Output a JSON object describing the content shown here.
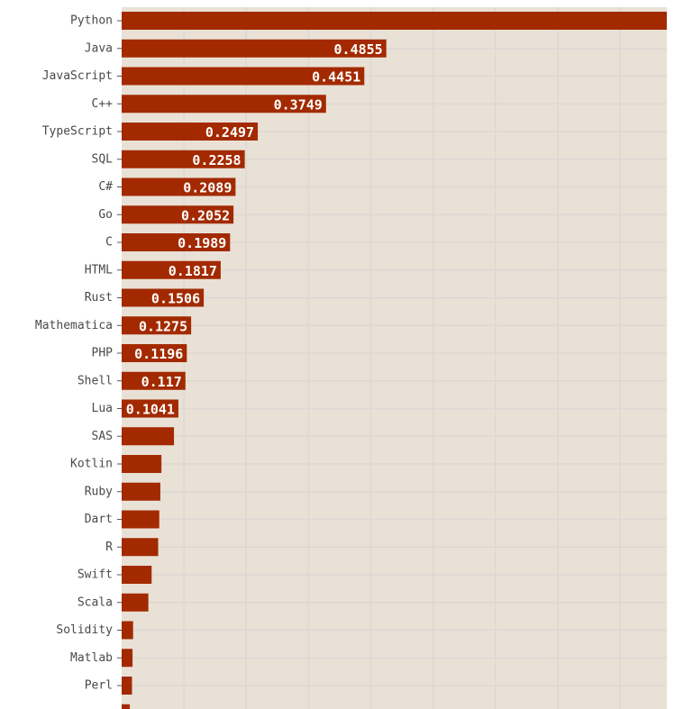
{
  "chart_data": {
    "type": "bar",
    "orientation": "horizontal",
    "title": "",
    "xlabel": "",
    "ylabel": "",
    "xlim": [
      0,
      1.0
    ],
    "grid": true,
    "legend": "none",
    "colors": {
      "bar": "#a32a00",
      "plot_background": "#e9e1d6",
      "grid": "#dcd8d4",
      "label_text": "#4a4a4a",
      "value_text": "#ffffff"
    },
    "categories": [
      "Python",
      "Java",
      "JavaScript",
      "C++",
      "TypeScript",
      "SQL",
      "C#",
      "Go",
      "C",
      "HTML",
      "Rust",
      "Mathematica",
      "PHP",
      "Shell",
      "Lua",
      "SAS",
      "Kotlin",
      "Ruby",
      "Dart",
      "R",
      "Swift",
      "Scala",
      "Solidity",
      "Matlab",
      "Perl",
      ""
    ],
    "values": [
      1.0,
      0.4855,
      0.4451,
      0.3749,
      0.2497,
      0.2258,
      0.2089,
      0.2052,
      0.1989,
      0.1817,
      0.1506,
      0.1275,
      0.1196,
      0.117,
      0.1041,
      0.096,
      0.073,
      0.071,
      0.069,
      0.067,
      0.055,
      0.049,
      0.021,
      0.02,
      0.019,
      0.015
    ],
    "value_labels": [
      "",
      "0.4855",
      "0.4451",
      "0.3749",
      "0.2497",
      "0.2258",
      "0.2089",
      "0.2052",
      "0.1989",
      "0.1817",
      "0.1506",
      "0.1275",
      "0.1196",
      "0.117",
      "0.1041",
      "",
      "",
      "",
      "",
      "",
      "",
      "",
      "",
      "",
      "",
      ""
    ]
  }
}
